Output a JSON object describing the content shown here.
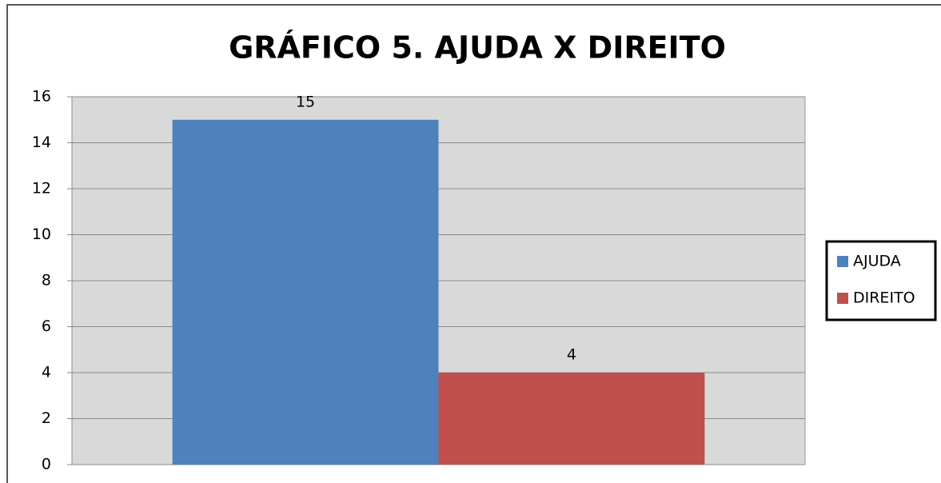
{
  "chart_data": {
    "type": "bar",
    "title": "GRÁFICO 5. AJUDA X DIREITO",
    "categories": [
      null
    ],
    "series": [
      {
        "name": "AJUDA",
        "color": "#4f81bd",
        "values": [
          15
        ]
      },
      {
        "name": "DIREITO",
        "color": "#c0504d",
        "values": [
          4
        ]
      }
    ],
    "ylim": [
      0,
      16
    ],
    "yticks": [
      0,
      2,
      4,
      6,
      8,
      10,
      12,
      14,
      16
    ],
    "grid": true,
    "legend": "right",
    "data_labels": true
  }
}
